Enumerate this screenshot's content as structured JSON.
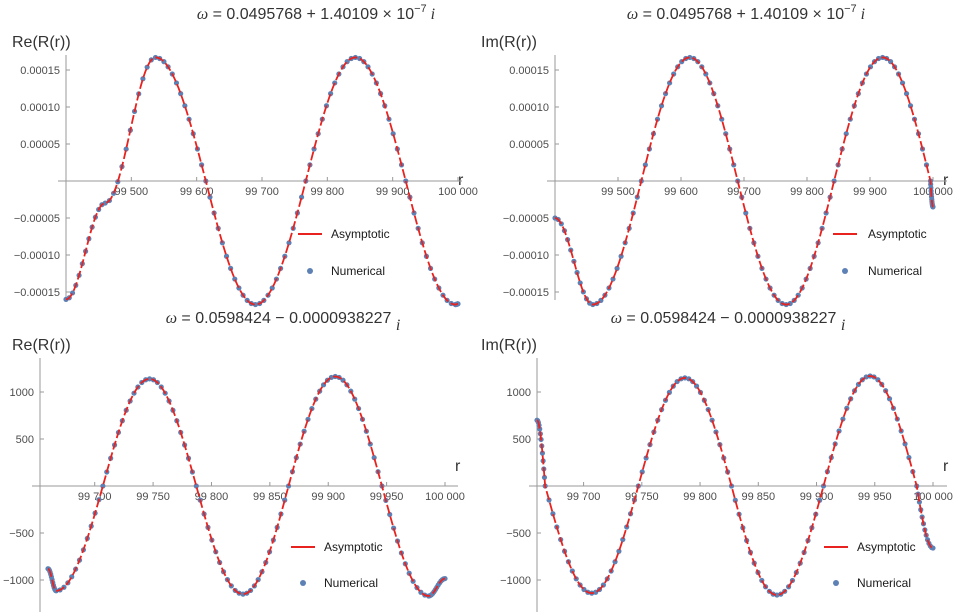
{
  "chart_data": [
    {
      "type": "line",
      "title": "ω = 0.0495768 + 1.40109 × 10^-7 i",
      "title_parts": {
        "omega": "ω",
        "equals": " = 0.0495768 + 1.40109 × 10",
        "exp": "−7",
        "imag": "i"
      },
      "ylabel": "Re(R(r))",
      "xlabel": "r",
      "xlim": [
        99400,
        100000
      ],
      "ylim": [
        -0.00018,
        0.00018
      ],
      "xticks": [
        99500,
        99600,
        99700,
        99800,
        99900,
        100000
      ],
      "xtick_labels": [
        "99 500",
        "99 600",
        "99 700",
        "99 800",
        "99 900",
        "100 000"
      ],
      "yticks": [
        -0.00015,
        -0.0001,
        -5e-05,
        5e-05,
        0.0001,
        0.00015
      ],
      "ytick_labels": [
        "−0.00015",
        "−0.00010",
        "−0.00005",
        "0.00005",
        "0.00010",
        "0.00015"
      ],
      "series": [
        {
          "name": "Asymptotic",
          "style": "line",
          "color": "#e8231f",
          "x": [
            99400,
            99460,
            99537,
            99614,
            99690,
            99767,
            99843,
            99920,
            99996,
            100000
          ],
          "y": [
            -0.00016,
            -2.98e-05,
            0.000167,
            0,
            -0.000167,
            0,
            0.000167,
            0,
            -0.000167,
            -0.000166
          ]
        },
        {
          "name": "Numerical",
          "style": "points",
          "color": "#5e81b5",
          "x": [
            99400,
            99460,
            99537,
            99614,
            99690,
            99767,
            99843,
            99920,
            99996,
            100000
          ],
          "y": [
            -0.00016,
            -2.98e-05,
            0.000167,
            0,
            -0.000167,
            0,
            0.000167,
            0,
            -0.000167,
            -0.000166
          ]
        }
      ],
      "legend_placement": "bottom-right"
    },
    {
      "type": "line",
      "title": "ω = 0.0495768 + 1.40109 × 10^-7 i",
      "title_parts": {
        "omega": "ω",
        "equals": " = 0.0495768 + 1.40109 × 10",
        "exp": "−7",
        "imag": "i"
      },
      "ylabel": "Im(R(r))",
      "xlabel": "r",
      "xlim": [
        99400,
        100000
      ],
      "ylim": [
        -0.00018,
        0.00018
      ],
      "xticks": [
        99500,
        99600,
        99700,
        99800,
        99900,
        100000
      ],
      "xtick_labels": [
        "99 500",
        "99 600",
        "99 700",
        "99 800",
        "99 900",
        "100 000"
      ],
      "yticks": [
        -0.00015,
        -0.0001,
        -5e-05,
        5e-05,
        0.0001,
        0.00015
      ],
      "ytick_labels": [
        "−0.00015",
        "−0.00010",
        "−0.00005",
        "0.00005",
        "0.00010",
        "0.00015"
      ],
      "series": [
        {
          "name": "Asymptotic",
          "style": "line",
          "color": "#e8231f",
          "x": [
            99400,
            99460,
            99537,
            99614,
            99690,
            99767,
            99843,
            99920,
            99996,
            100000
          ],
          "y": [
            -5e-05,
            -0.000167,
            0,
            0.000167,
            0,
            -0.000167,
            0,
            0.000167,
            0,
            -3.5e-05
          ]
        },
        {
          "name": "Numerical",
          "style": "points",
          "color": "#5e81b5",
          "x": [
            99400,
            99460,
            99537,
            99614,
            99690,
            99767,
            99843,
            99920,
            99996,
            100000
          ],
          "y": [
            -5e-05,
            -0.000167,
            0,
            0.000167,
            0,
            -0.000167,
            0,
            0.000167,
            0,
            -3.5e-05
          ]
        }
      ],
      "legend_placement": "bottom-right"
    },
    {
      "type": "line",
      "title": "ω = 0.0598424 − 0.0000938227 i",
      "title_parts": {
        "omega": "ω",
        "equals": " = 0.0598424 − 0.0000938227 ",
        "exp": "",
        "imag": "i"
      },
      "ylabel": "Re(R(r))",
      "xlabel": "r",
      "xlim": [
        99660,
        100000
      ],
      "ylim": [
        -1250,
        1250
      ],
      "xticks": [
        99700,
        99750,
        99800,
        99850,
        99900,
        99950,
        100000
      ],
      "xtick_labels": [
        "99 700",
        "99 750",
        "99 800",
        "99 850",
        "99 900",
        "99 950",
        "100 000"
      ],
      "yticks": [
        -1000,
        -500,
        500,
        1000
      ],
      "ytick_labels": [
        "−1000",
        "−500",
        "500",
        "1000"
      ],
      "series": [
        {
          "name": "Asymptotic",
          "style": "line",
          "color": "#e8231f",
          "x": [
            99660,
            99667,
            99707,
            99747,
            99787,
            99827,
            99866,
            99906,
            99946,
            99986,
            100000
          ],
          "y": [
            -880,
            -1115,
            0,
            1140,
            0,
            -1150,
            0,
            1165,
            0,
            -1170,
            -985
          ]
        },
        {
          "name": "Numerical",
          "style": "points",
          "color": "#5e81b5",
          "x": [
            99660,
            99667,
            99707,
            99747,
            99787,
            99827,
            99866,
            99906,
            99946,
            99986,
            100000
          ],
          "y": [
            -880,
            -1115,
            0,
            1140,
            0,
            -1150,
            0,
            1165,
            0,
            -1170,
            -985
          ]
        }
      ],
      "legend_placement": "bottom-right"
    },
    {
      "type": "line",
      "title": "ω = 0.0598424 − 0.0000938227 i",
      "title_parts": {
        "omega": "ω",
        "equals": " = 0.0598424 − 0.0000938227 ",
        "exp": "",
        "imag": "i"
      },
      "ylabel": "Im(R(r))",
      "xlabel": "r",
      "xlim": [
        99660,
        100000
      ],
      "ylim": [
        -1250,
        1250
      ],
      "xticks": [
        99700,
        99750,
        99800,
        99850,
        99900,
        99950,
        100000
      ],
      "xtick_labels": [
        "99 700",
        "99 750",
        "99 800",
        "99 850",
        "99 900",
        "99 950",
        "100 000"
      ],
      "yticks": [
        -1000,
        -500,
        500,
        1000
      ],
      "ytick_labels": [
        "−1000",
        "−500",
        "500",
        "1000"
      ],
      "series": [
        {
          "name": "Asymptotic",
          "style": "line",
          "color": "#e8231f",
          "x": [
            99660,
            99667,
            99707,
            99747,
            99787,
            99827,
            99866,
            99906,
            99946,
            99986,
            100000
          ],
          "y": [
            700,
            0,
            -1140,
            0,
            1150,
            0,
            -1160,
            0,
            1170,
            0,
            -660
          ]
        },
        {
          "name": "Numerical",
          "style": "points",
          "color": "#5e81b5",
          "x": [
            99660,
            99667,
            99707,
            99747,
            99787,
            99827,
            99866,
            99906,
            99946,
            99986,
            100000
          ],
          "y": [
            700,
            0,
            -1140,
            0,
            1150,
            0,
            -1160,
            0,
            1170,
            0,
            -660
          ]
        }
      ],
      "legend_placement": "bottom-right"
    }
  ]
}
